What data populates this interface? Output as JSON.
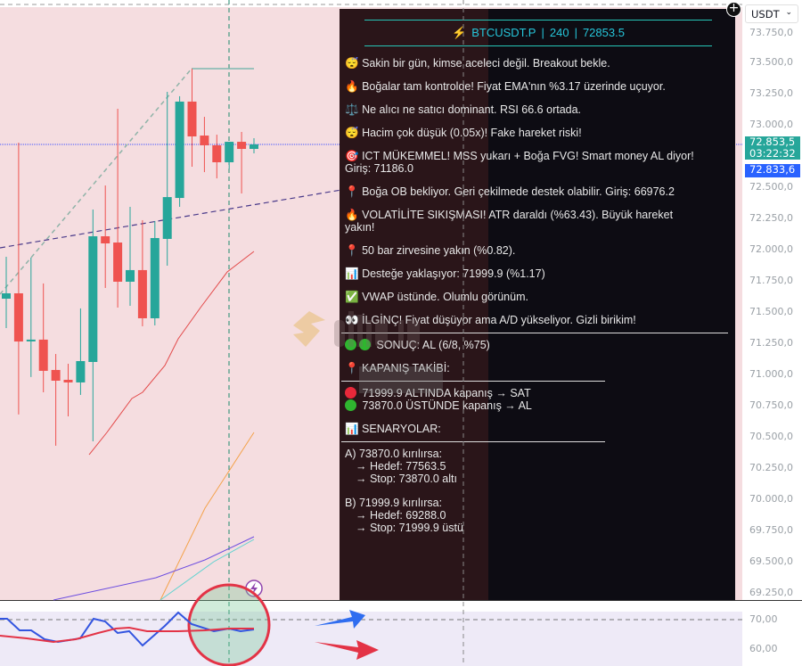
{
  "colors": {
    "up": "#26a69a",
    "down": "#ef5350",
    "chart_bg": "#f5dde0",
    "rsi_bg": "#eeeaf7",
    "accent": "#26c6da",
    "price_badge": "#26a69a",
    "vwap_badge": "#2962ff"
  },
  "header": {
    "symbol": "BTCUSDT.P",
    "timeframe": "240",
    "price": "72853.5",
    "sep": "|",
    "icon": "lightning-icon"
  },
  "messages": [
    {
      "icon": "😴",
      "text": "Sakin bir gün, kimse aceleci değil. Breakout bekle."
    },
    {
      "icon": "🔥",
      "text": "Boğalar tam kontrolde! Fiyat EMA'nın %3.17 üzerinde uçuyor."
    },
    {
      "icon": "⚖️",
      "text": "Ne alıcı ne satıcı dominant. RSI 66.6 ortada."
    },
    {
      "icon": "😴",
      "text": "Hacim çok düşük (0.05x)! Fake hareket riski!"
    },
    {
      "icon": "🎯",
      "text": "ICT MÜKEMMEL! MSS yukarı + Boğa FVG! Smart money AL diyor! Giriş: 71186.0"
    },
    {
      "icon": "📍",
      "text": "Boğa OB bekliyor. Geri çekilmede destek olabilir. Giriş: 66976.2"
    },
    {
      "icon": "🔥",
      "text": "VOLATİLİTE SIKIŞMASI! ATR daraldı (%63.43). Büyük hareket yakın!"
    },
    {
      "icon": "📍",
      "text": "50 bar zirvesine yakın (%0.82)."
    },
    {
      "icon": "📊",
      "text": "Desteğe yaklaşıyor: 71999.9 (%1.17)"
    },
    {
      "icon": "✅",
      "text": "VWAP üstünde. Olumlu görünüm."
    },
    {
      "icon": "👀",
      "text": "İLGİNÇ! Fiyat düşüyor ama A/D yükseliyor. Gizli birikim!"
    }
  ],
  "result": {
    "text": "SONUÇ: AL (6/8, %75)"
  },
  "closing": {
    "title": "📍 KAPANIŞ TAKİBİ:",
    "sell": "71999.9 ALTINDA kapanış → SAT",
    "buy": "73870.0 ÜSTÜNDE kapanış → AL"
  },
  "scenarios": {
    "title": "📊 SENARYOLAR:",
    "a": {
      "head": "A) 73870.0 kırılırsa:",
      "target": "→ Hedef: 77563.5",
      "stop": "→ Stop: 73870.0 altı"
    },
    "b": {
      "head": "B) 71999.9 kırılırsa:",
      "target": "→ Hedef: 69288.0",
      "stop": "→ Stop: 71999.9 üstü"
    }
  },
  "axis": {
    "currency": "USDT",
    "ticks": [
      "73.750,0",
      "73.500,0",
      "73.250,0",
      "73.000,0",
      "72.500,0",
      "72.250,0",
      "72.000,0",
      "71.750,0",
      "71.500,0",
      "71.250,0",
      "71.000,0",
      "70.750,0",
      "70.500,0",
      "70.250,0",
      "70.000,0",
      "69.750,0",
      "69.500,0",
      "69.250,0"
    ],
    "tick_values": [
      73750,
      73500,
      73250,
      73000,
      72500,
      72250,
      72000,
      71750,
      71500,
      71250,
      71000,
      70750,
      70500,
      70250,
      70000,
      69750,
      69500,
      69250
    ],
    "last_price": "72.853,5",
    "countdown": "03:22:32",
    "line_price": "72.833,6",
    "rsi_ticks": [
      "70,00",
      "60,00"
    ]
  },
  "watermark": {
    "brand": "altin.in",
    "sub": "mazar"
  },
  "candles": [
    [
      71607,
      71943,
      71371,
      71650
    ],
    [
      71650,
      72857,
      70679,
      71264
    ],
    [
      71271,
      71936,
      70979,
      71279
    ],
    [
      71279,
      71729,
      70857,
      71029
    ],
    [
      71036,
      71164,
      70429,
      70950
    ],
    [
      70957,
      71086,
      70664,
      70936
    ],
    [
      70936,
      71529,
      70836,
      71107
    ],
    [
      71100,
      72321,
      70464,
      72107
    ],
    [
      72107,
      72514,
      71693,
      72050
    ],
    [
      72057,
      73129,
      71536,
      71743
    ],
    [
      71743,
      72343,
      71550,
      71836
    ],
    [
      71836,
      72236,
      71386,
      71450
    ],
    [
      71450,
      72229,
      71393,
      72093
    ],
    [
      72086,
      73264,
      71871,
      72421
    ],
    [
      72414,
      73229,
      72343,
      73186
    ],
    [
      73186,
      73450,
      72664,
      72907
    ],
    [
      72914,
      73064,
      72621,
      72836
    ],
    [
      72836,
      72921,
      72571,
      72700
    ],
    [
      72700,
      72864,
      72643,
      72864
    ],
    [
      72864,
      72943,
      72450,
      72807
    ],
    [
      72807,
      72893,
      72771,
      72843
    ]
  ]
}
